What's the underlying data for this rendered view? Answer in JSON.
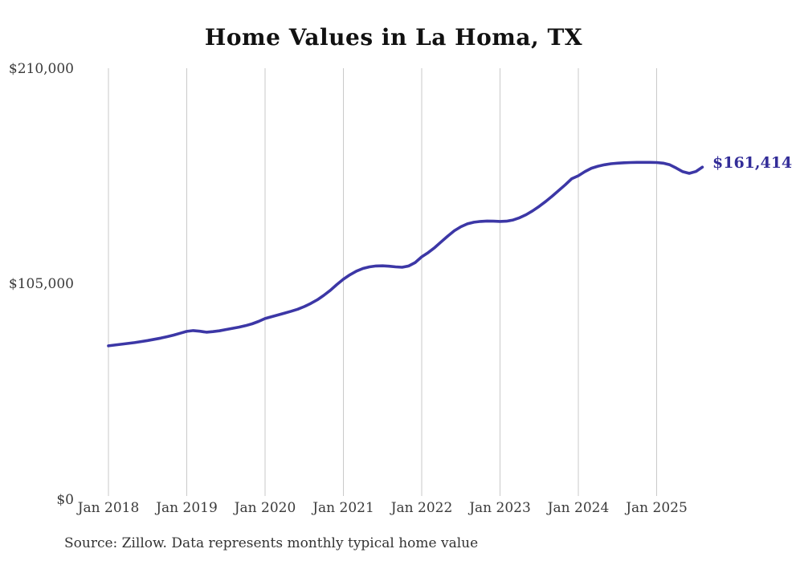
{
  "chart_data": {
    "type": "line",
    "title": "Home Values in La Homa, TX",
    "source_note": "Source: Zillow. Data represents monthly typical home value",
    "series_name": "Monthly typical home value (USD)",
    "x_interval": "monthly",
    "x_start": "Jan 2018",
    "x_end": "Aug 2025",
    "x_tick_labels": [
      "Jan 2018",
      "Jan 2019",
      "Jan 2020",
      "Jan 2021",
      "Jan 2022",
      "Jan 2023",
      "Jan 2024",
      "Jan 2025"
    ],
    "y_tick_labels": [
      "$0",
      "$105,000",
      "$210,000"
    ],
    "ylim": [
      0,
      210000
    ],
    "grid": "vertical-only",
    "legend": "none",
    "end_label": "$161,414",
    "end_value": 161414,
    "line_color": "#3c37a6",
    "end_label_color": "#332d98",
    "gridline_color": "#c9c9c9",
    "months": [
      "Jan 2018",
      "Feb 2018",
      "Mar 2018",
      "Apr 2018",
      "May 2018",
      "Jun 2018",
      "Jul 2018",
      "Aug 2018",
      "Sep 2018",
      "Oct 2018",
      "Nov 2018",
      "Dec 2018",
      "Jan 2019",
      "Feb 2019",
      "Mar 2019",
      "Apr 2019",
      "May 2019",
      "Jun 2019",
      "Jul 2019",
      "Aug 2019",
      "Sep 2019",
      "Oct 2019",
      "Nov 2019",
      "Dec 2019",
      "Jan 2020",
      "Feb 2020",
      "Mar 2020",
      "Apr 2020",
      "May 2020",
      "Jun 2020",
      "Jul 2020",
      "Aug 2020",
      "Sep 2020",
      "Oct 2020",
      "Nov 2020",
      "Dec 2020",
      "Jan 2021",
      "Feb 2021",
      "Mar 2021",
      "Apr 2021",
      "May 2021",
      "Jun 2021",
      "Jul 2021",
      "Aug 2021",
      "Sep 2021",
      "Oct 2021",
      "Nov 2021",
      "Dec 2021",
      "Jan 2022",
      "Feb 2022",
      "Mar 2022",
      "Apr 2022",
      "May 2022",
      "Jun 2022",
      "Jul 2022",
      "Aug 2022",
      "Sep 2022",
      "Oct 2022",
      "Nov 2022",
      "Dec 2022",
      "Jan 2023",
      "Feb 2023",
      "Mar 2023",
      "Apr 2023",
      "May 2023",
      "Jun 2023",
      "Jul 2023",
      "Aug 2023",
      "Sep 2023",
      "Oct 2023",
      "Nov 2023",
      "Dec 2023",
      "Jan 2024",
      "Feb 2024",
      "Mar 2024",
      "Apr 2024",
      "May 2024",
      "Jun 2024",
      "Jul 2024",
      "Aug 2024",
      "Sep 2024",
      "Oct 2024",
      "Nov 2024",
      "Dec 2024",
      "Jan 2025",
      "Feb 2025",
      "Mar 2025",
      "Apr 2025",
      "May 2025",
      "Jun 2025",
      "Jul 2025",
      "Aug 2025"
    ],
    "values": [
      73700,
      74100,
      74500,
      74900,
      75300,
      75800,
      76300,
      76900,
      77500,
      78200,
      79000,
      79900,
      80800,
      81200,
      80900,
      80400,
      80700,
      81100,
      81700,
      82300,
      82900,
      83600,
      84500,
      85700,
      87100,
      88000,
      88900,
      89800,
      90700,
      91700,
      93000,
      94500,
      96300,
      98500,
      101000,
      103800,
      106400,
      108600,
      110400,
      111700,
      112500,
      112900,
      113000,
      112800,
      112500,
      112300,
      112900,
      114600,
      117400,
      119500,
      122000,
      124800,
      127600,
      130200,
      132200,
      133600,
      134400,
      134800,
      135000,
      134900,
      134800,
      134900,
      135500,
      136600,
      138100,
      140000,
      142200,
      144600,
      147200,
      150000,
      152800,
      155800,
      157200,
      159200,
      160900,
      161900,
      162600,
      163100,
      163400,
      163600,
      163700,
      163800,
      163800,
      163800,
      163700,
      163400,
      162600,
      161000,
      159200,
      158400,
      159300,
      161414
    ]
  }
}
